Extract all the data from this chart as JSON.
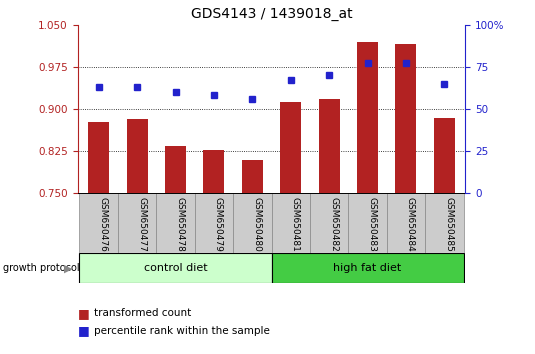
{
  "title": "GDS4143 / 1439018_at",
  "samples": [
    "GSM650476",
    "GSM650477",
    "GSM650478",
    "GSM650479",
    "GSM650480",
    "GSM650481",
    "GSM650482",
    "GSM650483",
    "GSM650484",
    "GSM650485"
  ],
  "bar_values": [
    0.877,
    0.882,
    0.833,
    0.827,
    0.808,
    0.912,
    0.918,
    1.02,
    1.015,
    0.883
  ],
  "dot_values_pct": [
    63,
    63,
    60,
    58,
    56,
    67,
    70,
    77,
    77,
    65
  ],
  "ylim_left": [
    0.75,
    1.05
  ],
  "ylim_right": [
    0,
    100
  ],
  "yticks_left": [
    0.75,
    0.825,
    0.9,
    0.975,
    1.05
  ],
  "yticks_right": [
    0,
    25,
    50,
    75,
    100
  ],
  "bar_color": "#b22222",
  "dot_color": "#2222cc",
  "group1_label": "control diet",
  "group2_label": "high fat diet",
  "group1_color": "#ccffcc",
  "group2_color": "#44cc44",
  "group1_count": 5,
  "group2_count": 5,
  "legend_bar_label": "transformed count",
  "legend_dot_label": "percentile rank within the sample",
  "growth_protocol_label": "growth protocol",
  "title_fontsize": 10,
  "tick_fontsize": 7.5,
  "sample_fontsize": 6.5,
  "group_fontsize": 8,
  "legend_fontsize": 7.5
}
